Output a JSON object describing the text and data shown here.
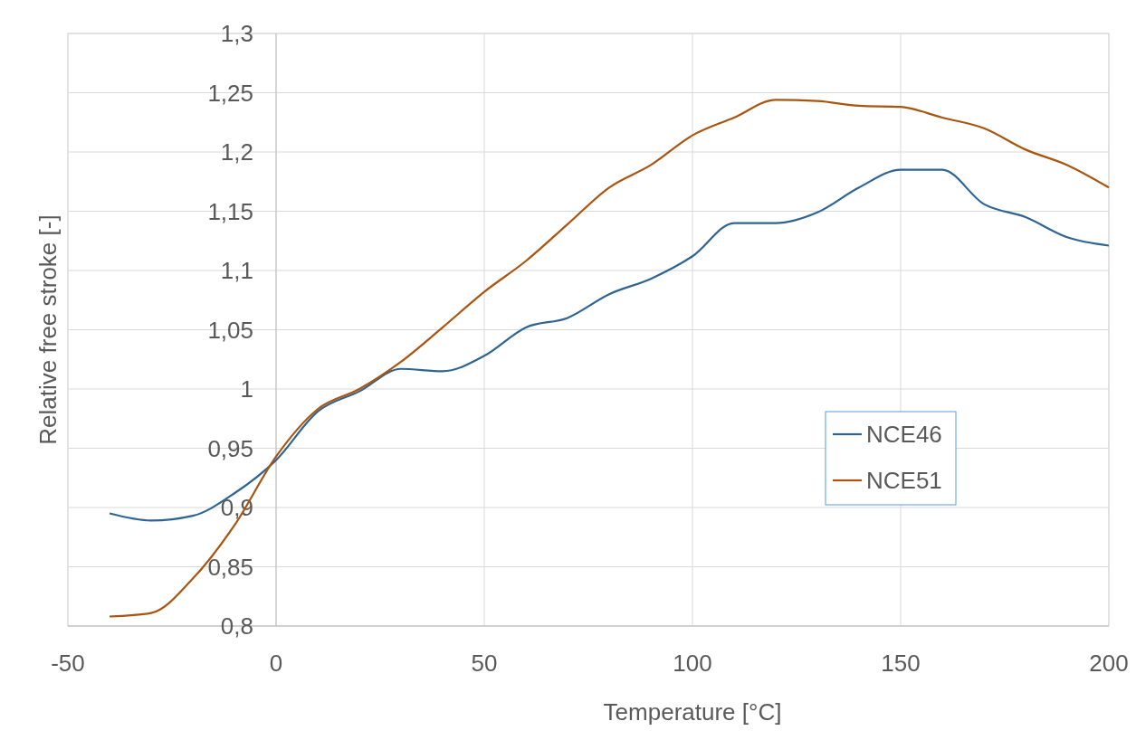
{
  "chart_data": {
    "type": "line",
    "xlabel": "Temperature [°C]",
    "ylabel": "Relative free stroke [-]",
    "xlim": [
      -50,
      200
    ],
    "xticks": [
      -50,
      0,
      50,
      100,
      150,
      200
    ],
    "ylim": [
      0.8,
      1.3
    ],
    "yticks": [
      {
        "value": 0.8,
        "label": "0,8"
      },
      {
        "value": 0.85,
        "label": "0,85"
      },
      {
        "value": 0.9,
        "label": "0,9"
      },
      {
        "value": 0.95,
        "label": "0,95"
      },
      1,
      {
        "value": 1.05,
        "label": "1,05"
      },
      {
        "value": 1.1,
        "label": "1,1"
      },
      {
        "value": 1.15,
        "label": "1,15"
      },
      {
        "value": 1.2,
        "label": "1,2"
      },
      {
        "value": 1.25,
        "label": "1,25"
      },
      {
        "value": 1.3,
        "label": "1,3"
      }
    ],
    "grid": true,
    "legend": "right",
    "marker": "none",
    "line_style": "solid",
    "x": [
      -40,
      -30,
      -20,
      -10,
      0,
      10,
      20,
      30,
      40,
      50,
      60,
      70,
      80,
      90,
      100,
      110,
      120,
      130,
      140,
      150,
      160,
      170,
      180,
      190,
      200
    ],
    "series": [
      {
        "name": "NCE46",
        "color": "#2e6494",
        "values": [
          0.895,
          0.889,
          0.893,
          0.912,
          0.94,
          0.981,
          0.998,
          1.017,
          1.015,
          1.028,
          1.052,
          1.06,
          1.08,
          1.093,
          1.112,
          1.14,
          1.14,
          1.149,
          1.17,
          1.185,
          1.185,
          1.156,
          1.145,
          1.128,
          1.121
        ]
      },
      {
        "name": "NCE51",
        "color": "#a9540f",
        "values": [
          0.808,
          0.811,
          0.84,
          0.885,
          0.943,
          0.983,
          1.0,
          1.023,
          1.052,
          1.082,
          1.108,
          1.139,
          1.17,
          1.189,
          1.214,
          1.229,
          1.244,
          1.243,
          1.239,
          1.238,
          1.229,
          1.22,
          1.202,
          1.189,
          1.17
        ]
      }
    ]
  }
}
